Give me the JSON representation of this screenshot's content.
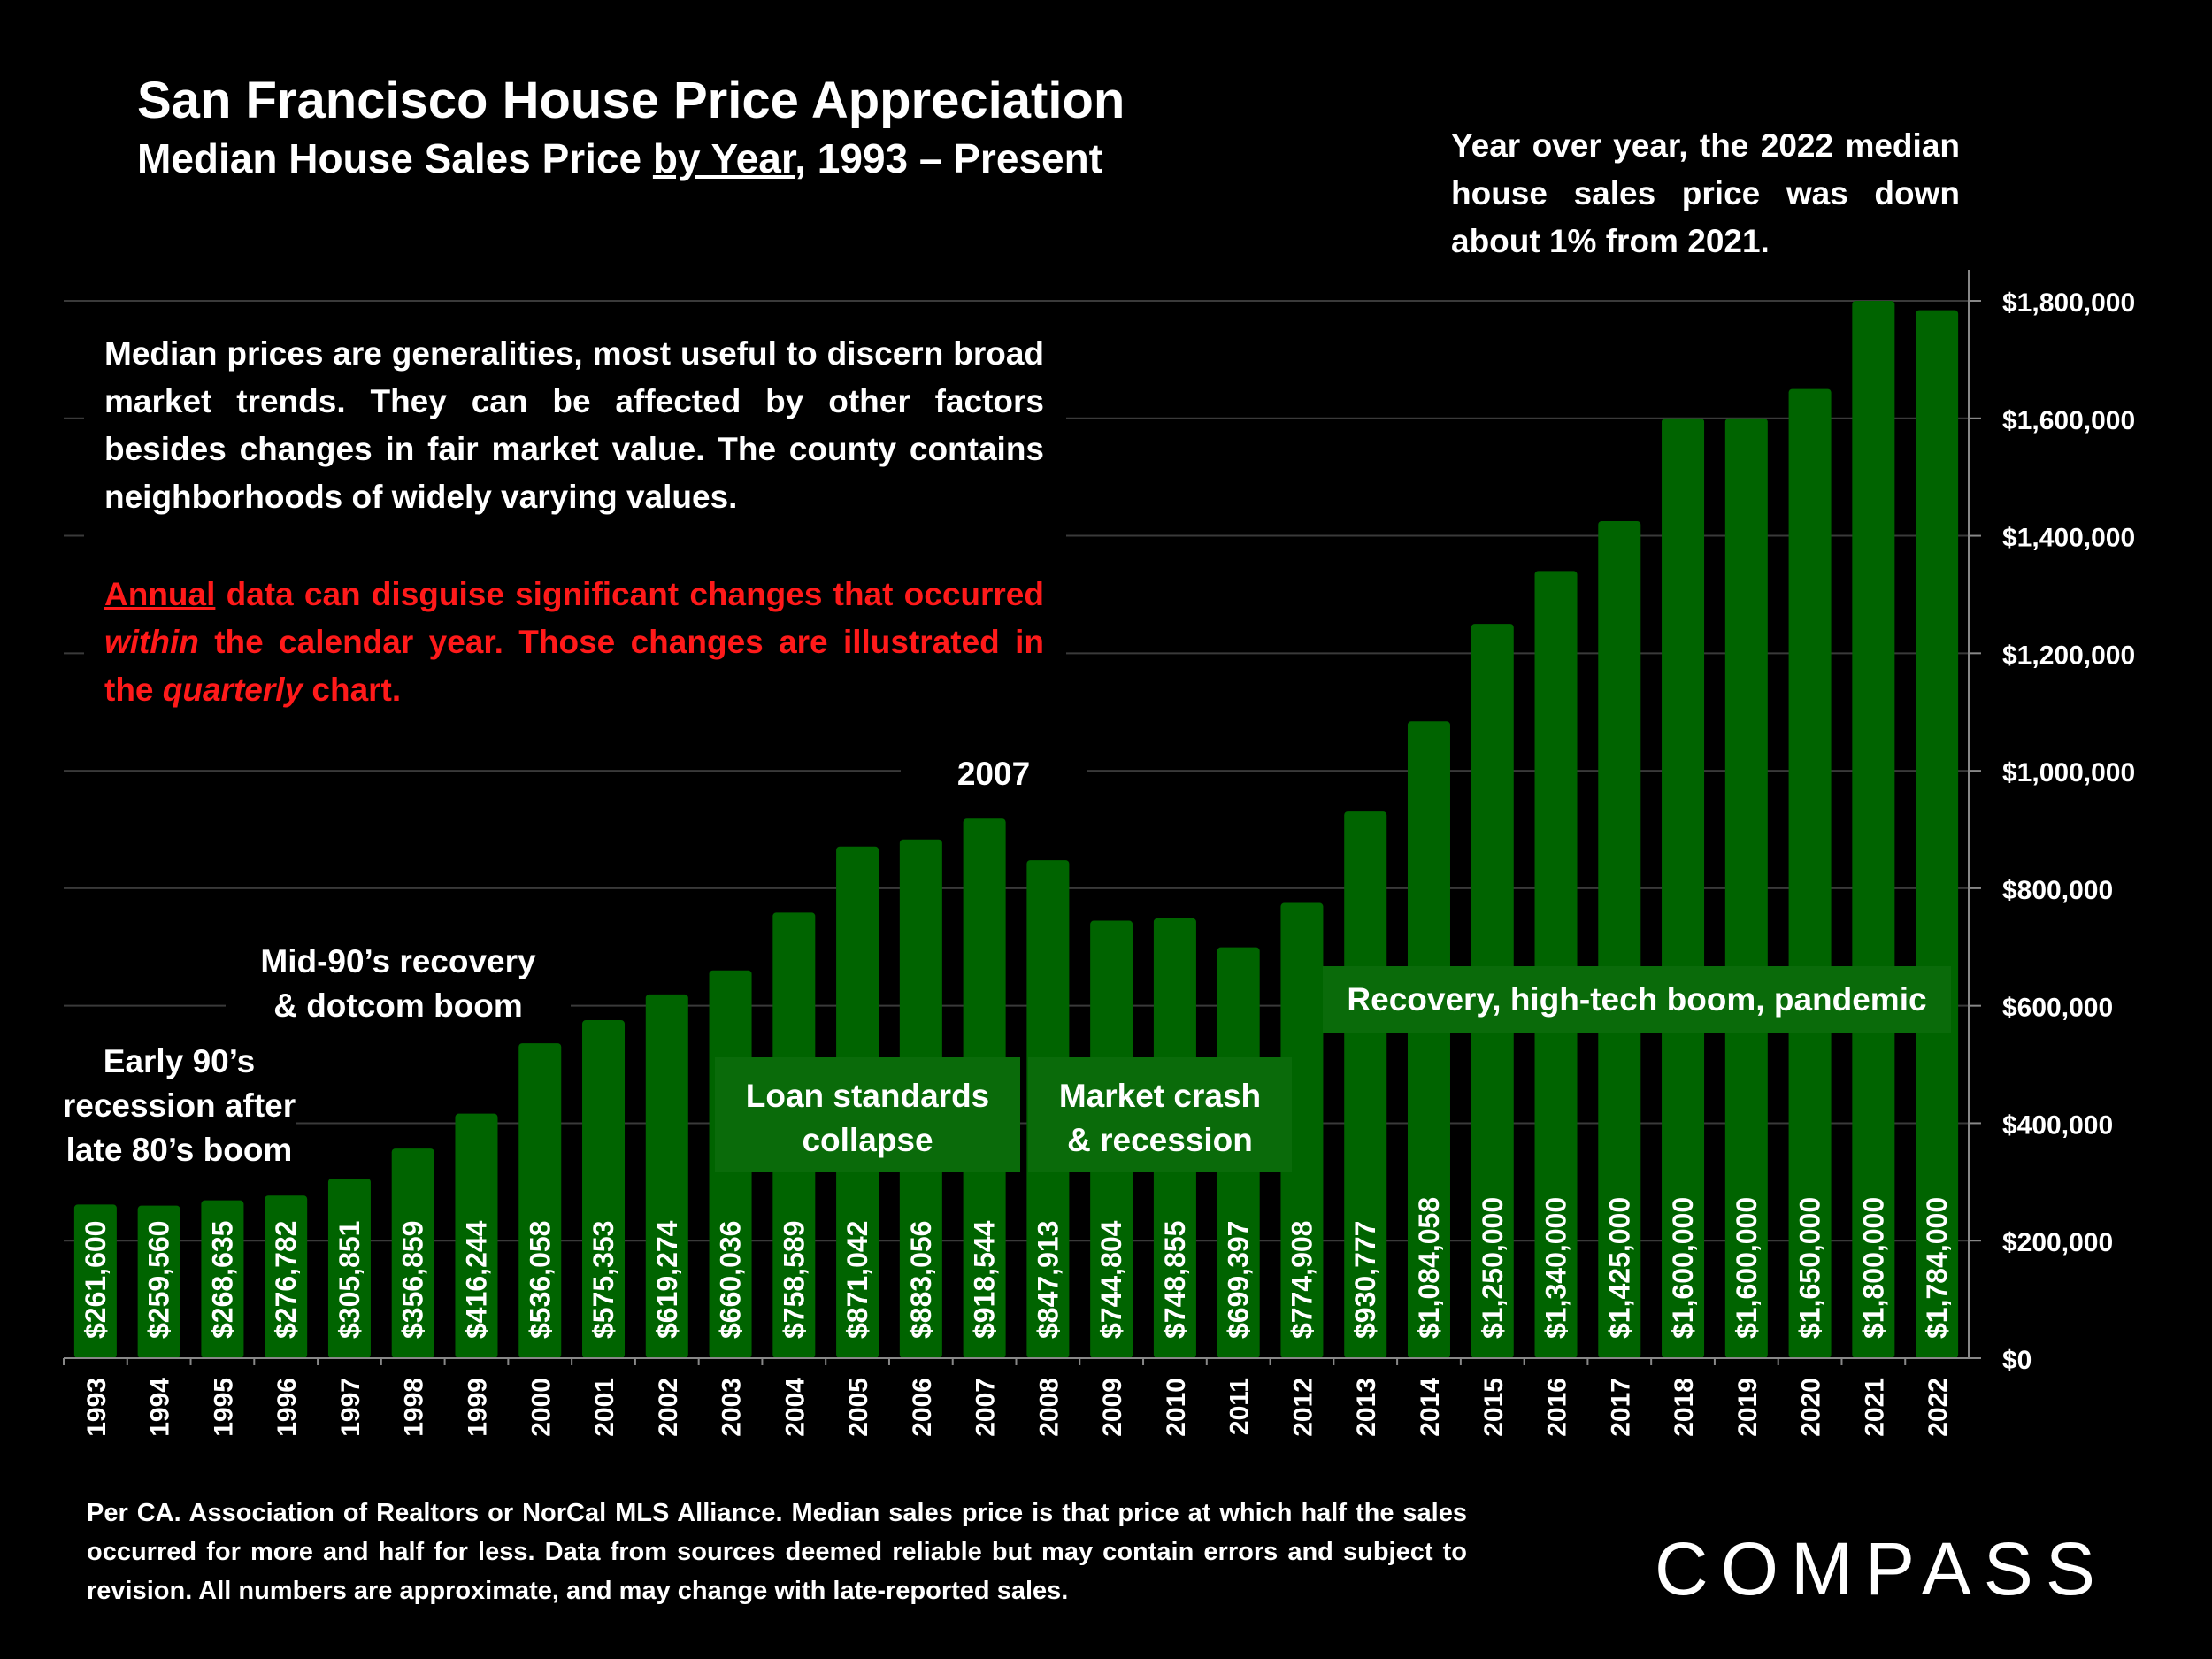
{
  "header": {
    "title": "San Francisco House Price Appreciation",
    "subtitle_pre": "Median House Sales Price ",
    "subtitle_underlined": "by Year",
    "subtitle_post": ", 1993 – Present"
  },
  "yoy_note": "Year over year, the 2022 median house sales price was down about 1% from 2021.",
  "info": {
    "paragraph1": "Median prices are generalities, most useful to discern broad market trends. They can be affected by other factors besides changes in fair market value. The county contains neighborhoods of widely varying values.",
    "p2_underlined": "Annual",
    "p2_a": " data can disguise significant changes that occurred ",
    "p2_italic1": "within",
    "p2_b": " the calendar year. Those changes are illustrated in the ",
    "p2_italic2": "quarterly",
    "p2_c": " chart."
  },
  "annotations": {
    "early90s_l1": "Early 90’s",
    "early90s_l2": "recession after",
    "early90s_l3": "late 80’s boom",
    "mid90s_l1": "Mid-90’s recovery",
    "mid90s_l2": "& dotcom boom",
    "year2007": "2007",
    "loan_l1": "Loan standards",
    "loan_l2": "collapse",
    "crash_l1": "Market crash",
    "crash_l2": "& recession",
    "recovery": "Recovery, high-tech boom, pandemic"
  },
  "footnote": "Per CA. Association of Realtors or NorCal MLS Alliance. Median sales price is that price at which half the sales occurred for more and half for less. Data from sources deemed reliable but may contain errors and subject to revision. All numbers are approximate, and may change with late-reported sales.",
  "logo": "COMPASS",
  "colors": {
    "bar": "#006400",
    "background": "#000000",
    "text": "#ffffff",
    "warning": "#ff1a1a",
    "annotation_box": "#0a6b0a"
  },
  "chart_data": {
    "type": "bar",
    "title": "Median House Sales Price by Year, 1993 – Present",
    "xlabel": "",
    "ylabel": "",
    "categories": [
      "1993",
      "1994",
      "1995",
      "1996",
      "1997",
      "1998",
      "1999",
      "2000",
      "2001",
      "2002",
      "2003",
      "2004",
      "2005",
      "2006",
      "2007",
      "2008",
      "2009",
      "2010",
      "2011",
      "2012",
      "2013",
      "2014",
      "2015",
      "2016",
      "2017",
      "2018",
      "2019",
      "2020",
      "2021",
      "2022"
    ],
    "values": [
      261600,
      259560,
      268635,
      276782,
      305851,
      356859,
      416244,
      536058,
      575353,
      619274,
      660036,
      758589,
      871042,
      883056,
      918544,
      847913,
      744804,
      748855,
      699397,
      774908,
      930777,
      1084058,
      1250000,
      1340000,
      1425000,
      1600000,
      1600000,
      1650000,
      1800000,
      1784000
    ],
    "value_labels": [
      "$261,600",
      "$259,560",
      "$268,635",
      "$276,782",
      "$305,851",
      "$356,859",
      "$416,244",
      "$536,058",
      "$575,353",
      "$619,274",
      "$660,036",
      "$758,589",
      "$871,042",
      "$883,056",
      "$918,544",
      "$847,913",
      "$744,804",
      "$748,855",
      "$699,397",
      "$774,908",
      "$930,777",
      "$1,084,058",
      "$1,250,000",
      "$1,340,000",
      "$1,425,000",
      "$1,600,000",
      "$1,600,000",
      "$1,650,000",
      "$1,800,000",
      "$1,784,000"
    ],
    "ylim": [
      0,
      1800000
    ],
    "yticks": [
      0,
      200000,
      400000,
      600000,
      800000,
      1000000,
      1200000,
      1400000,
      1600000,
      1800000
    ],
    "ytick_labels": [
      "$0",
      "$200,000",
      "$400,000",
      "$600,000",
      "$800,000",
      "$1,000,000",
      "$1,200,000",
      "$1,400,000",
      "$1,600,000",
      "$1,800,000"
    ],
    "y_axis_side": "right",
    "grid": true
  }
}
